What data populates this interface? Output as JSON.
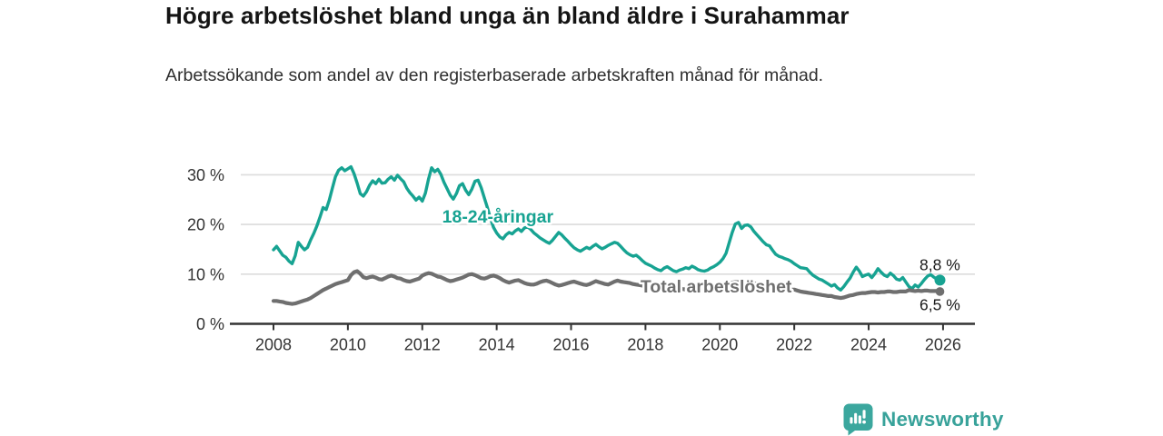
{
  "title": "Högre arbetslöshet bland unga än bland äldre i Surahammar",
  "subtitle": "Arbetssökande som andel av den registerbaserade arbetskraften månad för månad.",
  "branding": {
    "name": "Newsworthy",
    "icon": "bar-chart-speech-bubble-icon",
    "color": "#3ba79e"
  },
  "colors": {
    "youth_line": "#17a392",
    "total_line": "#6f6f6f",
    "grid": "#dcdcdc",
    "axis": "#333333",
    "axis_text": "#333333",
    "end_label_text": "#1a1a1a"
  },
  "chart_data": {
    "type": "line",
    "title": "Högre arbetslöshet bland unga än bland äldre i Surahammar",
    "subtitle": "Arbetssökande som andel av den registerbaserade arbetskraften månad för månad.",
    "xlabel": "",
    "ylabel": "",
    "x_unit": "year (monthly data)",
    "x_start_year": 2008,
    "x_step_months": 1,
    "xlim": [
      2007.1,
      2026.85
    ],
    "ylim": [
      0,
      33
    ],
    "grid": true,
    "y_ticks": [
      {
        "label": "0 %",
        "value": 0
      },
      {
        "label": "10 %",
        "value": 10
      },
      {
        "label": "20 %",
        "value": 20
      },
      {
        "label": "30 %",
        "value": 30
      }
    ],
    "x_ticks": [
      {
        "label": "2008",
        "value": 2008
      },
      {
        "label": "2010",
        "value": 2010
      },
      {
        "label": "2012",
        "value": 2012
      },
      {
        "label": "2014",
        "value": 2014
      },
      {
        "label": "2016",
        "value": 2016
      },
      {
        "label": "2018",
        "value": 2018
      },
      {
        "label": "2020",
        "value": 2020
      },
      {
        "label": "2022",
        "value": 2022
      },
      {
        "label": "2024",
        "value": 2024
      },
      {
        "label": "2026",
        "value": 2026
      }
    ],
    "series": [
      {
        "name": "18-24-åringar",
        "color": "#17a392",
        "line_width": 3.4,
        "end_label": "8,8 %",
        "end_value": 8.8,
        "label_anchor": {
          "year": 2014.03,
          "value": 21.7
        },
        "values": [
          14.9,
          15.6,
          14.7,
          13.8,
          13.4,
          12.6,
          12.1,
          13.7,
          16.4,
          15.6,
          14.9,
          15.4,
          16.9,
          18.2,
          19.7,
          21.5,
          23.4,
          23.0,
          24.9,
          27.3,
          29.6,
          30.9,
          31.4,
          30.8,
          31.2,
          31.6,
          30.2,
          28.3,
          26.2,
          25.7,
          26.6,
          27.9,
          28.8,
          28.2,
          29.1,
          28.3,
          28.4,
          29.1,
          29.6,
          28.9,
          29.9,
          29.2,
          28.6,
          27.3,
          26.4,
          25.7,
          24.9,
          25.5,
          24.7,
          26.3,
          29.1,
          31.4,
          30.6,
          31.1,
          30.1,
          28.5,
          27.2,
          25.9,
          25.1,
          26.2,
          27.8,
          28.2,
          26.9,
          26.0,
          27.1,
          28.7,
          28.9,
          27.4,
          25.4,
          23.4,
          21.2,
          19.4,
          18.3,
          17.5,
          17.1,
          17.9,
          18.4,
          18.1,
          18.7,
          19.1,
          18.6,
          19.3,
          19.5,
          19.0,
          18.3,
          17.8,
          17.3,
          16.9,
          16.5,
          16.2,
          16.8,
          17.6,
          18.4,
          17.9,
          17.2,
          16.6,
          15.9,
          15.3,
          14.9,
          14.6,
          15.0,
          15.4,
          15.1,
          15.6,
          16.0,
          15.5,
          15.1,
          15.4,
          15.8,
          16.1,
          16.4,
          16.2,
          15.6,
          14.9,
          14.3,
          13.9,
          13.6,
          13.8,
          13.3,
          12.7,
          12.2,
          11.9,
          11.6,
          11.2,
          10.9,
          10.7,
          11.2,
          11.5,
          11.1,
          10.7,
          10.5,
          10.8,
          11.0,
          11.3,
          11.1,
          11.6,
          11.3,
          10.9,
          10.7,
          10.6,
          10.8,
          11.2,
          11.5,
          11.9,
          12.4,
          13.1,
          14.2,
          16.3,
          18.4,
          20.1,
          20.4,
          19.2,
          19.8,
          19.9,
          19.5,
          18.6,
          17.9,
          17.2,
          16.5,
          15.9,
          15.7,
          14.8,
          14.0,
          13.6,
          13.4,
          13.1,
          12.9,
          12.6,
          12.1,
          11.7,
          11.3,
          11.2,
          11.1,
          10.4,
          9.8,
          9.4,
          9.0,
          8.8,
          8.4,
          8.0,
          7.6,
          7.9,
          7.2,
          6.8,
          7.5,
          8.4,
          9.2,
          10.4,
          11.4,
          10.6,
          9.5,
          9.8,
          10.0,
          9.3,
          10.1,
          11.1,
          10.4,
          9.8,
          9.5,
          10.2,
          9.7,
          9.0,
          8.8,
          9.3,
          8.4,
          7.5,
          7.1,
          7.8,
          7.4,
          8.1,
          8.9,
          9.6,
          9.9,
          9.4,
          9.0,
          8.8
        ]
      },
      {
        "name": "Total arbetslöshet",
        "color": "#6f6f6f",
        "line_width": 4.2,
        "end_label": "6,5 %",
        "end_value": 6.5,
        "label_anchor": {
          "year": 2019.9,
          "value": 7.6
        },
        "values": [
          4.6,
          4.6,
          4.5,
          4.4,
          4.2,
          4.1,
          4.0,
          4.1,
          4.3,
          4.5,
          4.7,
          4.9,
          5.2,
          5.6,
          6.0,
          6.4,
          6.8,
          7.1,
          7.4,
          7.7,
          8.0,
          8.2,
          8.4,
          8.6,
          8.8,
          9.8,
          10.4,
          10.6,
          10.1,
          9.4,
          9.2,
          9.4,
          9.5,
          9.3,
          9.0,
          8.9,
          9.2,
          9.5,
          9.7,
          9.5,
          9.2,
          9.1,
          8.8,
          8.6,
          8.5,
          8.7,
          8.9,
          9.1,
          9.7,
          10.0,
          10.2,
          10.1,
          9.8,
          9.5,
          9.4,
          9.1,
          8.8,
          8.6,
          8.7,
          8.9,
          9.1,
          9.3,
          9.6,
          9.9,
          10.0,
          9.8,
          9.5,
          9.2,
          9.1,
          9.3,
          9.6,
          9.7,
          9.5,
          9.2,
          8.8,
          8.5,
          8.3,
          8.5,
          8.7,
          8.8,
          8.5,
          8.2,
          8.0,
          7.9,
          7.9,
          8.1,
          8.4,
          8.6,
          8.7,
          8.5,
          8.2,
          7.9,
          7.7,
          7.8,
          8.0,
          8.2,
          8.4,
          8.5,
          8.3,
          8.1,
          7.9,
          7.8,
          8.0,
          8.3,
          8.6,
          8.4,
          8.2,
          8.0,
          7.9,
          8.2,
          8.5,
          8.7,
          8.5,
          8.4,
          8.3,
          8.2,
          8.0,
          7.9,
          7.8,
          7.7,
          7.7,
          7.6,
          7.5,
          7.4,
          7.3,
          7.2,
          7.2,
          7.1,
          7.1,
          7.0,
          7.0,
          7.0,
          7.0,
          6.9,
          6.9,
          6.9,
          7.0,
          7.0,
          7.1,
          7.1,
          7.2,
          7.2,
          7.3,
          7.4,
          7.4,
          7.6,
          7.9,
          8.1,
          8.3,
          8.4,
          8.4,
          8.3,
          8.3,
          8.2,
          8.2,
          8.1,
          8.1,
          8.0,
          7.9,
          7.8,
          7.7,
          7.5,
          7.4,
          7.3,
          7.2,
          7.1,
          7.0,
          6.9,
          6.9,
          6.7,
          6.5,
          6.4,
          6.3,
          6.2,
          6.1,
          6.0,
          5.9,
          5.8,
          5.7,
          5.6,
          5.6,
          5.4,
          5.3,
          5.2,
          5.3,
          5.5,
          5.7,
          5.8,
          6.0,
          6.1,
          6.2,
          6.2,
          6.3,
          6.4,
          6.4,
          6.3,
          6.4,
          6.4,
          6.5,
          6.5,
          6.4,
          6.4,
          6.5,
          6.5,
          6.5,
          6.8,
          6.7,
          6.6,
          6.7,
          6.6,
          6.7,
          6.7,
          6.6,
          6.6,
          6.6,
          6.5
        ]
      }
    ],
    "annotations": [
      {
        "text": "18-24-åringar",
        "color": "#17a392",
        "anchor_year": 2014.03,
        "anchor_value": 21.7
      },
      {
        "text": "Total arbetslöshet",
        "color": "#6f6f6f",
        "anchor_year": 2019.9,
        "anchor_value": 7.6
      }
    ],
    "legend_position": "inline-labels"
  }
}
